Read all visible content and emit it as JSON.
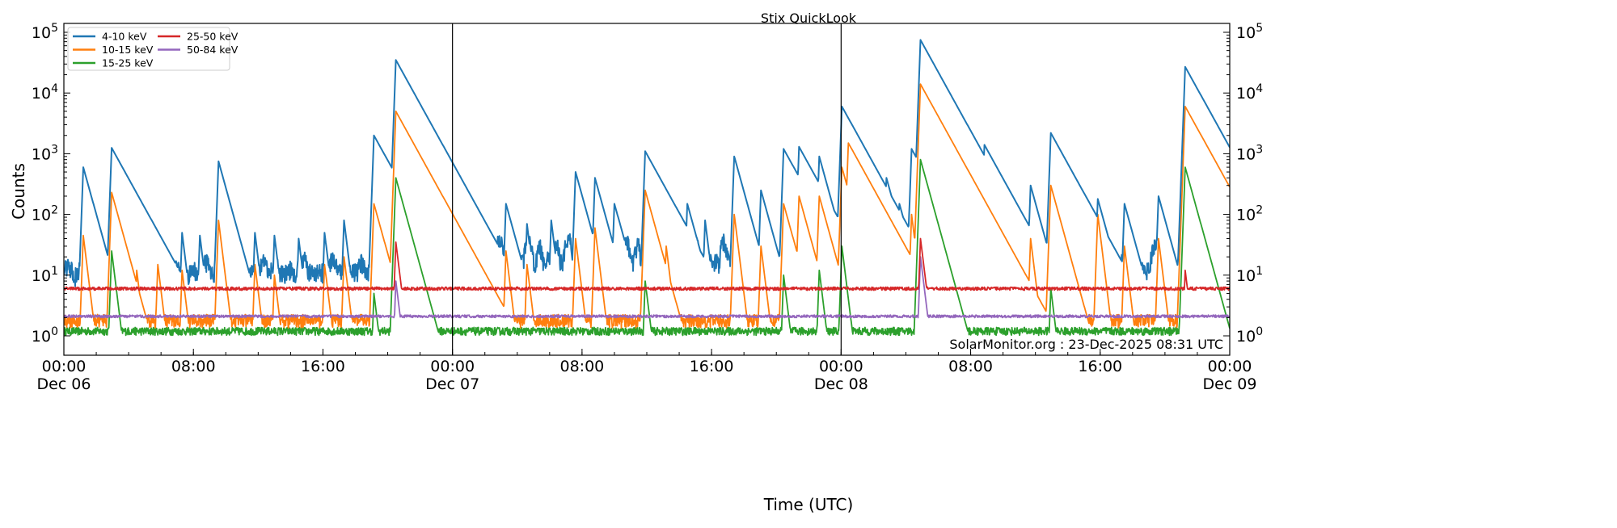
{
  "chart_data": {
    "type": "line",
    "title": "Stix QuickLook",
    "xlabel": "Time (UTC)",
    "ylabel": "Counts",
    "yscale": "log",
    "ylim": [
      0.48,
      140000
    ],
    "xlim_hours": [
      0,
      72
    ],
    "x_ticks": [
      {
        "t": 0,
        "time": "00:00",
        "date": "Dec 06"
      },
      {
        "t": 8,
        "time": "08:00",
        "date": ""
      },
      {
        "t": 16,
        "time": "16:00",
        "date": ""
      },
      {
        "t": 24,
        "time": "00:00",
        "date": "Dec 07"
      },
      {
        "t": 32,
        "time": "08:00",
        "date": ""
      },
      {
        "t": 40,
        "time": "16:00",
        "date": ""
      },
      {
        "t": 48,
        "time": "00:00",
        "date": "Dec 08"
      },
      {
        "t": 56,
        "time": "08:00",
        "date": ""
      },
      {
        "t": 64,
        "time": "16:00",
        "date": ""
      },
      {
        "t": 72,
        "time": "00:00",
        "date": "Dec 09"
      }
    ],
    "y_ticks": [
      {
        "exp": 0,
        "label": "10",
        "sup": "0"
      },
      {
        "exp": 1,
        "label": "10",
        "sup": "1"
      },
      {
        "exp": 2,
        "label": "10",
        "sup": "2"
      },
      {
        "exp": 3,
        "label": "10",
        "sup": "3"
      },
      {
        "exp": 4,
        "label": "10",
        "sup": "4"
      },
      {
        "exp": 5,
        "label": "10",
        "sup": "5"
      }
    ],
    "day_boundaries_hours": [
      24,
      48
    ],
    "legend_position": "top-left",
    "annotation": "SolarMonitor.org : 23-Dec-2025 08:31 UTC",
    "series": [
      {
        "name": "4-10 keV",
        "color": "#1f77b4",
        "baseline": [
          [
            0,
            10
          ],
          [
            24,
            12
          ],
          [
            30,
            18
          ],
          [
            48,
            15
          ],
          [
            72,
            12
          ]
        ],
        "peaks": [
          [
            1.2,
            600
          ],
          [
            2.95,
            1250
          ],
          [
            4.5,
            30
          ],
          [
            5.8,
            40
          ],
          [
            7.3,
            50
          ],
          [
            8.4,
            45
          ],
          [
            9.55,
            750
          ],
          [
            11.8,
            50
          ],
          [
            13,
            45
          ],
          [
            14.5,
            40
          ],
          [
            16.1,
            50
          ],
          [
            17.3,
            80
          ],
          [
            19.15,
            2000
          ],
          [
            20.5,
            35000
          ],
          [
            24.8,
            60
          ],
          [
            26.2,
            55
          ],
          [
            27.3,
            150
          ],
          [
            28.6,
            70
          ],
          [
            30.1,
            80
          ],
          [
            31.6,
            500
          ],
          [
            32.8,
            400
          ],
          [
            34,
            150
          ],
          [
            35.9,
            1100
          ],
          [
            37.2,
            200
          ],
          [
            38.5,
            150
          ],
          [
            39.6,
            80
          ],
          [
            41.4,
            900
          ],
          [
            43.05,
            250
          ],
          [
            44.45,
            1200
          ],
          [
            45.4,
            1300
          ],
          [
            46.65,
            900
          ],
          [
            48.05,
            6000
          ],
          [
            48.45,
            1500
          ],
          [
            49.5,
            150
          ],
          [
            50.8,
            400
          ],
          [
            51.6,
            150
          ],
          [
            52.35,
            1200
          ],
          [
            52.9,
            75000
          ],
          [
            54.75,
            4000
          ],
          [
            55.8,
            150
          ],
          [
            56.85,
            1400
          ],
          [
            58.1,
            200
          ],
          [
            59.7,
            300
          ],
          [
            60.95,
            2200
          ],
          [
            62.2,
            120
          ],
          [
            63.85,
            180
          ],
          [
            65.5,
            150
          ],
          [
            67.6,
            200
          ],
          [
            69.25,
            27000
          ],
          [
            70.35,
            1300
          ],
          [
            71.8,
            140
          ]
        ]
      },
      {
        "name": "10-15 keV",
        "color": "#ff7f0e",
        "baseline": [
          [
            0,
            1.8
          ],
          [
            72,
            1.8
          ]
        ],
        "peaks": [
          [
            1.2,
            45
          ],
          [
            2.95,
            230
          ],
          [
            4.5,
            12
          ],
          [
            5.8,
            15
          ],
          [
            7.3,
            12
          ],
          [
            9.55,
            80
          ],
          [
            11.8,
            15
          ],
          [
            13,
            10
          ],
          [
            16.1,
            15
          ],
          [
            17.3,
            20
          ],
          [
            19.15,
            150
          ],
          [
            20.5,
            5000
          ],
          [
            24.8,
            25
          ],
          [
            27.3,
            25
          ],
          [
            28.6,
            15
          ],
          [
            31.6,
            40
          ],
          [
            32.8,
            60
          ],
          [
            35.9,
            250
          ],
          [
            37.2,
            30
          ],
          [
            41.4,
            100
          ],
          [
            43.05,
            30
          ],
          [
            44.45,
            150
          ],
          [
            45.4,
            200
          ],
          [
            46.65,
            200
          ],
          [
            48.05,
            600
          ],
          [
            48.45,
            1500
          ],
          [
            50.8,
            50
          ],
          [
            52.35,
            100
          ],
          [
            52.9,
            14000
          ],
          [
            54.75,
            350
          ],
          [
            56.85,
            100
          ],
          [
            59.7,
            40
          ],
          [
            60.95,
            300
          ],
          [
            63.85,
            100
          ],
          [
            65.5,
            30
          ],
          [
            67.6,
            40
          ],
          [
            69.25,
            6000
          ],
          [
            70.35,
            150
          ]
        ]
      },
      {
        "name": "15-25 keV",
        "color": "#2ca02c",
        "baseline": [
          [
            0,
            1.2
          ],
          [
            72,
            1.2
          ]
        ],
        "peaks": [
          [
            2.95,
            25
          ],
          [
            19.15,
            5
          ],
          [
            20.5,
            400
          ],
          [
            35.9,
            8
          ],
          [
            44.45,
            10
          ],
          [
            46.65,
            12
          ],
          [
            48.05,
            30
          ],
          [
            52.9,
            800
          ],
          [
            54.75,
            8
          ],
          [
            60.95,
            6
          ],
          [
            69.25,
            600
          ]
        ]
      },
      {
        "name": "25-50 keV",
        "color": "#d62728",
        "baseline": [
          [
            0,
            6
          ],
          [
            72,
            6
          ]
        ],
        "peaks": [
          [
            20.5,
            35
          ],
          [
            52.9,
            40
          ],
          [
            69.25,
            12
          ]
        ]
      },
      {
        "name": "50-84 keV",
        "color": "#9467bd",
        "baseline": [
          [
            0,
            2.1
          ],
          [
            72,
            2.1
          ]
        ],
        "peaks": [
          [
            20.5,
            8
          ],
          [
            52.9,
            20
          ]
        ]
      }
    ]
  }
}
